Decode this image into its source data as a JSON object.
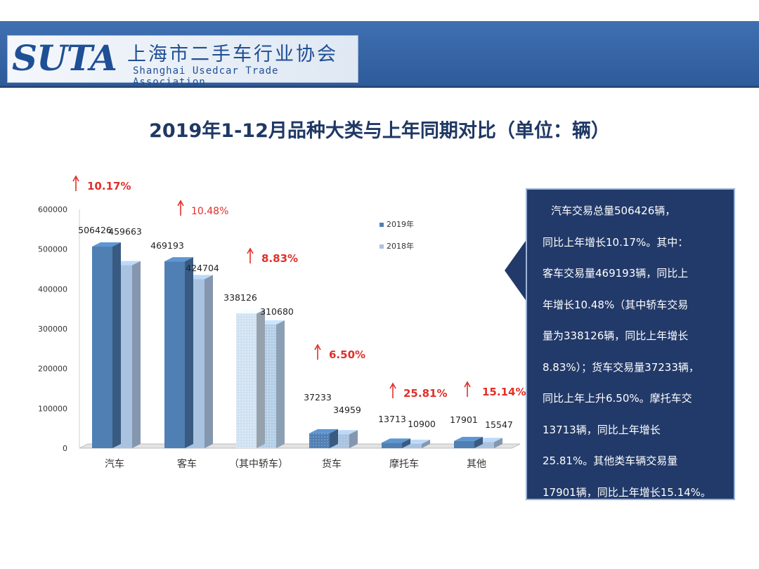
{
  "header": {
    "logo_text": "SUTA",
    "org_name_cn": "上海市二手车行业协会",
    "org_name_en": "Shanghai Usedcar Trade Association"
  },
  "page_title": "2019年1-12月品种大类与上年同期对比（单位：辆）",
  "colors": {
    "series_2019": "#4f7fb3",
    "series_2018": "#a9c2df",
    "sedan_2019": "#cfe1f1",
    "sedan_2018": "#b3cde6",
    "growth_red": "#e0302a",
    "summary_bg": "#223a69",
    "header_blue": "#3566a9"
  },
  "chart_data": {
    "type": "bar",
    "categories": [
      "汽车",
      "客车",
      "（其中轿车）",
      "货车",
      "摩托车",
      "其他"
    ],
    "series": [
      {
        "name": "2019年",
        "values": [
          506426,
          469193,
          338126,
          37233,
          13713,
          17901
        ]
      },
      {
        "name": "2018年",
        "values": [
          459663,
          424704,
          310680,
          34959,
          10900,
          15547
        ]
      }
    ],
    "growth": [
      "10.17%",
      "10.48%",
      "8.83%",
      "6.50%",
      "25.81%",
      "15.14%"
    ],
    "ylim": [
      0,
      600000
    ],
    "yticks": [
      0,
      100000,
      200000,
      300000,
      400000,
      500000,
      600000
    ],
    "legend_position": "top-right",
    "grid": false
  },
  "summary": {
    "lines": [
      "汽车交易总量506426辆，",
      "同比上年增长10.17%。其中：",
      "客车交易量469193辆，同比上",
      "年增长10.48%（其中轿车交易",
      "量为338126辆，同比上年增长",
      "8.83%）；货车交易量37233辆，",
      "同比上年上升6.50%。摩托车交",
      "13713辆，同比上年增长",
      "25.81%。其他类车辆交易量",
      "17901辆，同比上年增长15.14%。"
    ]
  }
}
